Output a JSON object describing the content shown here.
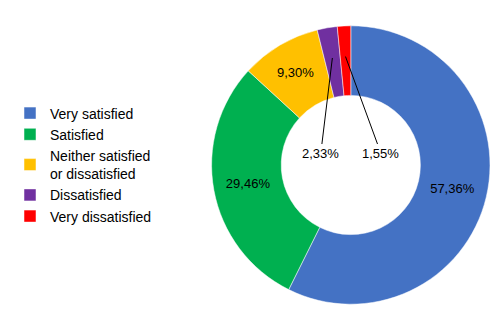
{
  "chart_data": {
    "type": "donut",
    "categories": [
      "Very satisfied",
      "Satisfied",
      "Neither satisfied or dissatisfied",
      "Dissatisfied",
      "Very dissatisfied"
    ],
    "values": [
      57.36,
      29.46,
      9.3,
      2.33,
      1.55
    ],
    "value_labels": [
      "57,36%",
      "29,46%",
      "9,30%",
      "2,33%",
      "1,55%"
    ],
    "colors": [
      "#4472c4",
      "#00b050",
      "#ffc000",
      "#7030a0",
      "#ff0000"
    ],
    "legend": "left",
    "data_labels": true
  }
}
